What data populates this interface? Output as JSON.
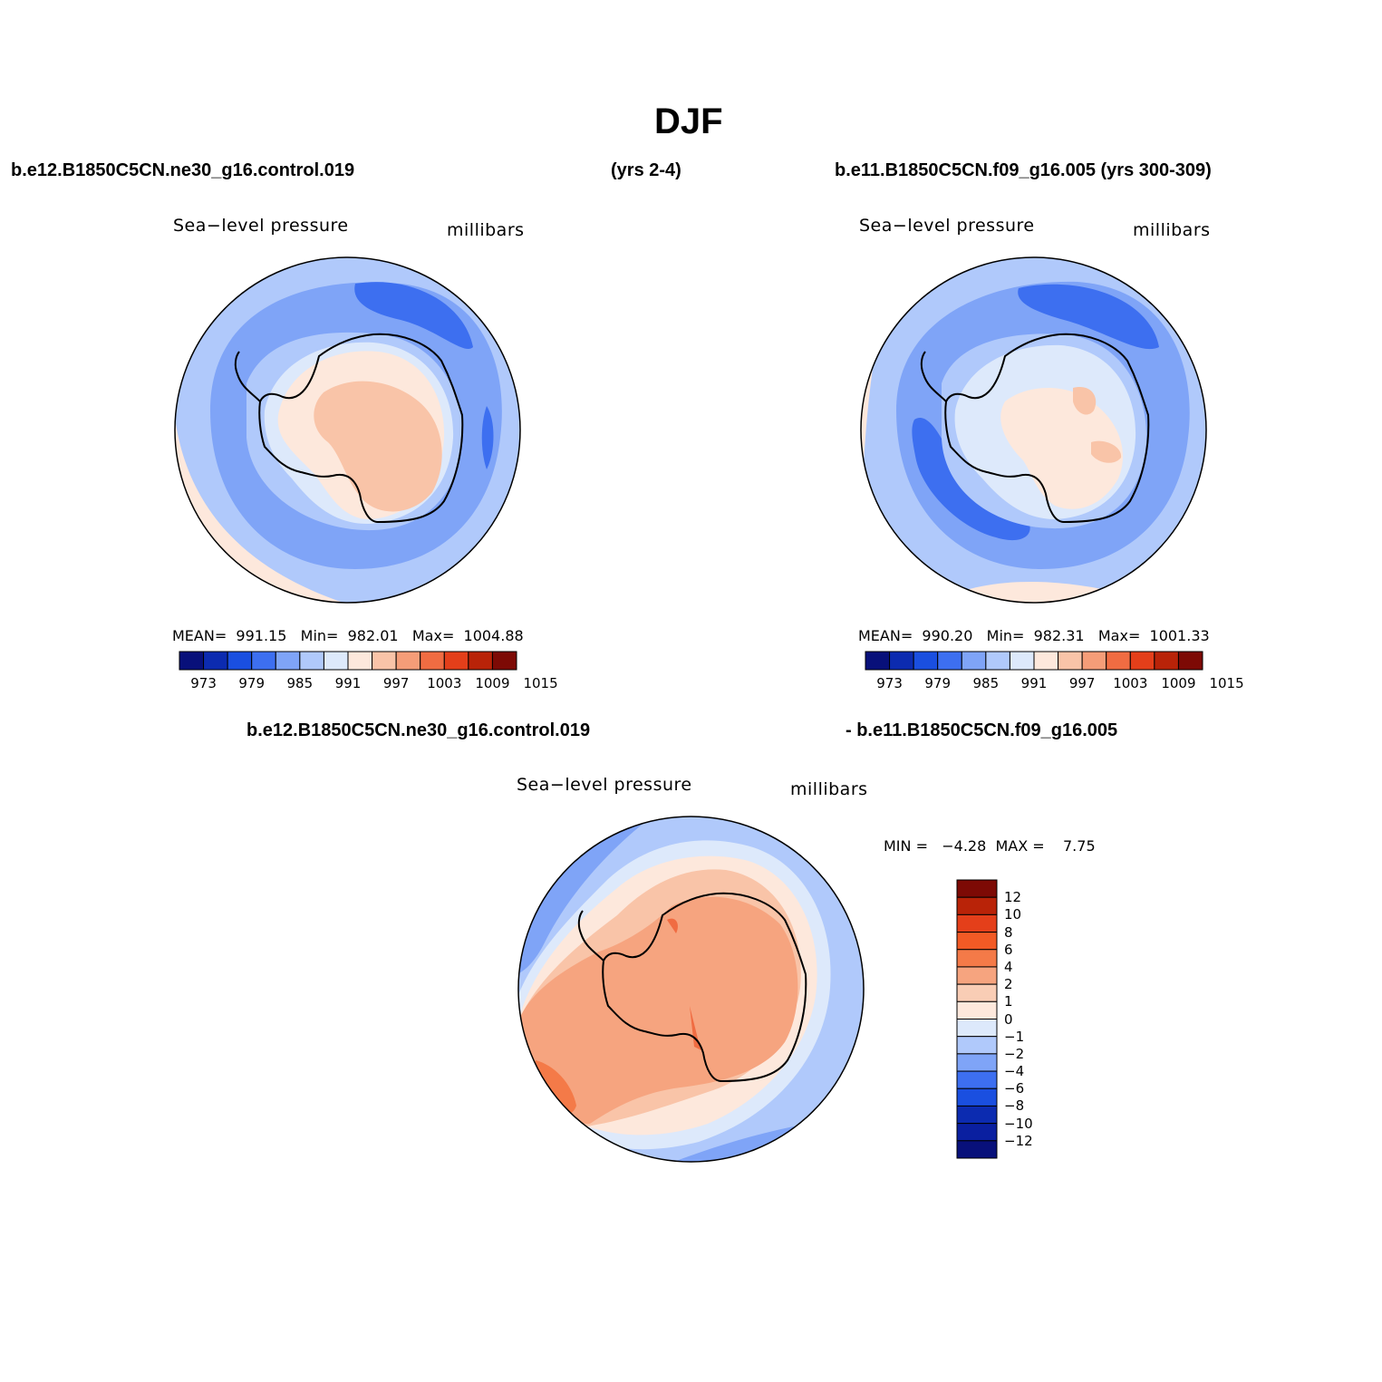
{
  "figure": {
    "title": "DJF",
    "case1_header": "b.e12.B1850C5CN.ne30_g16.control.019",
    "case1_years": "(yrs 2-4)",
    "case2_header": "b.e11.B1850C5CN.f09_g16.005 (yrs 300-309)",
    "diff_header_left": "b.e12.B1850C5CN.ne30_g16.control.019",
    "diff_header_right": "- b.e11.B1850C5CN.f09_g16.005"
  },
  "panels": [
    {
      "variable": "Sea−level pressure",
      "units": "millibars",
      "stats": "MEAN=  991.15   Min=  982.01   Max=  1004.88"
    },
    {
      "variable": "Sea−level pressure",
      "units": "millibars",
      "stats": "MEAN=  990.20   Min=  982.31   Max=  1001.33"
    },
    {
      "variable": "Sea−level pressure",
      "units": "millibars",
      "stats": "MIN =   −4.28  MAX =    7.75"
    }
  ],
  "colorbar_abs": {
    "colors": [
      "#08107a",
      "#0c2bb0",
      "#1a4fe0",
      "#3d6ff0",
      "#7fa4f7",
      "#b0c9fb",
      "#dde9fb",
      "#fde8dc",
      "#f9c4a8",
      "#f59d78",
      "#f06c42",
      "#e43f1a",
      "#b92308",
      "#7d0a05"
    ],
    "tick_labels": [
      "973",
      "979",
      "985",
      "991",
      "997",
      "1003",
      "1009",
      "1015"
    ]
  },
  "colorbar_diff": {
    "colors_top_to_bottom": [
      "#7d0a05",
      "#b92308",
      "#e43f1a",
      "#f25a25",
      "#f47a48",
      "#f6a47f",
      "#f9cdb5",
      "#fde8dc",
      "#dde9fb",
      "#b0c9fb",
      "#7fa4f7",
      "#3d6ff0",
      "#1a4fe0",
      "#0c2bb0",
      "#0a1fa0",
      "#08107a"
    ],
    "tick_labels_top_to_bottom": [
      "12",
      "10",
      "8",
      "6",
      "4",
      "2",
      "1",
      "0",
      "−1",
      "−2",
      "−4",
      "−6",
      "−8",
      "−10",
      "−12"
    ]
  },
  "chart_data": [
    {
      "type": "heatmap",
      "title": "Sea−level pressure (millibars)",
      "case": "b.e12.B1850C5CN.ne30_g16.control.019",
      "projection": "south polar stereographic",
      "mean": 991.15,
      "min": 982.01,
      "max": 1004.88,
      "contour_levels": [
        973,
        976,
        979,
        982,
        985,
        988,
        991,
        994,
        997,
        1000,
        1003,
        1006,
        1009,
        1012,
        1015
      ]
    },
    {
      "type": "heatmap",
      "title": "Sea−level pressure (millibars)",
      "case": "b.e11.B1850C5CN.f09_g16.005",
      "projection": "south polar stereographic",
      "mean": 990.2,
      "min": 982.31,
      "max": 1001.33,
      "contour_levels": [
        973,
        976,
        979,
        982,
        985,
        988,
        991,
        994,
        997,
        1000,
        1003,
        1006,
        1009,
        1012,
        1015
      ]
    },
    {
      "type": "heatmap",
      "title": "Sea−level pressure difference (millibars)",
      "projection": "south polar stereographic",
      "min": -4.28,
      "max": 7.75,
      "contour_levels": [
        -12,
        -10,
        -8,
        -6,
        -4,
        -2,
        -1,
        0,
        1,
        2,
        4,
        6,
        8,
        10,
        12
      ]
    }
  ]
}
